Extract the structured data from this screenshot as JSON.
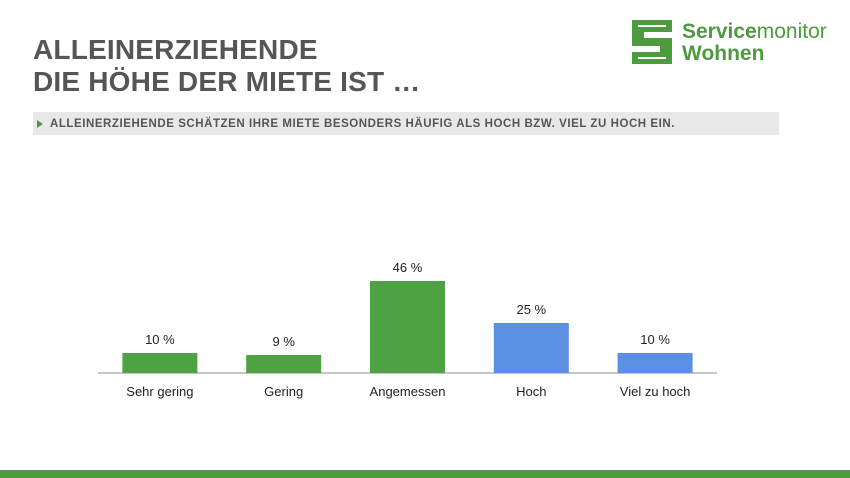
{
  "header": {
    "title_line1": "ALLEINERZIEHENDE",
    "title_line2": "DIE HÖHE DER MIETE IST …",
    "subtitle": "ALLEINERZIEHENDE SCHÄTZEN IHRE MIETE BESONDERS HÄUFIG ALS HOCH BZW. VIEL ZU HOCH EIN."
  },
  "logo": {
    "word1_bold": "Service",
    "word1_light": "monitor",
    "word2": "Wohnen",
    "icon": "servicemonitor-s-logo-icon"
  },
  "colors": {
    "brand_green": "#4e9a3f",
    "bar_green": "#4ea244",
    "bar_blue": "#5a8fe3",
    "text_gray": "#555555"
  },
  "chart_data": {
    "type": "bar",
    "categories": [
      "Sehr gering",
      "Gering",
      "Angemessen",
      "Hoch",
      "Viel zu hoch"
    ],
    "values": [
      10,
      9,
      46,
      25,
      10
    ],
    "data_labels": [
      "10 %",
      "9 %",
      "46 %",
      "25 %",
      "10 %"
    ],
    "bar_colors": [
      "#4ea244",
      "#4ea244",
      "#4ea244",
      "#5a8fe3",
      "#5a8fe3"
    ],
    "title": "",
    "xlabel": "",
    "ylabel": "",
    "ylim": [
      0,
      50
    ],
    "grid": false,
    "legend": "none"
  }
}
